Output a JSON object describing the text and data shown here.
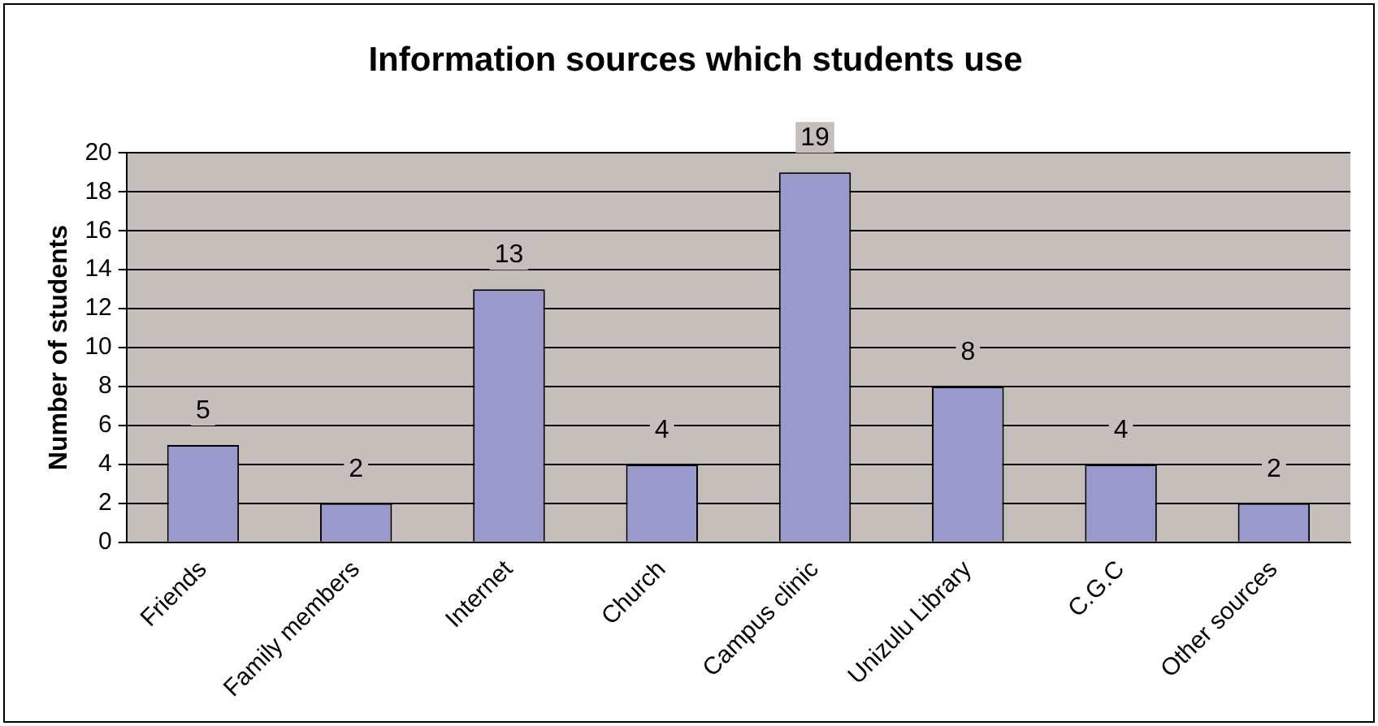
{
  "chart_data": {
    "type": "bar",
    "title": "Information sources which students use",
    "ylabel": "Number of students",
    "categories": [
      "Friends",
      "Family members",
      "Internet",
      "Church",
      "Campus clinic",
      "Unizulu Library",
      "C.G.C",
      "Other sources"
    ],
    "values": [
      5,
      2,
      13,
      4,
      19,
      8,
      4,
      2
    ],
    "color": "#9999cc",
    "ylim": [
      0,
      20
    ],
    "yticks": [
      0,
      2,
      4,
      6,
      8,
      10,
      12,
      14,
      16,
      18,
      20
    ],
    "grid": "y",
    "data_labels": true,
    "legend": false
  }
}
